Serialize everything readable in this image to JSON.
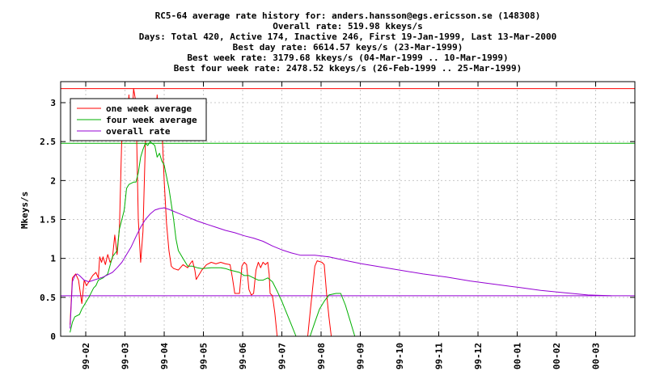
{
  "chart_data": {
    "type": "line",
    "title_lines": [
      "RC5-64 average rate history for: anders.hansson@egs.ericsson.se (148308)",
      "Overall rate: 519.98 kkeys/s",
      "Days: Total 420,  Active 174, Inactive 246, First 19-Jan-1999, Last 13-Mar-2000",
      "Best day rate: 6614.57 keys/s (23-Mar-1999)",
      "Best week rate: 3179.68 kkeys/s (04-Mar-1999 .. 10-Mar-1999)",
      "Best four week rate: 2478.52 kkeys/s (26-Feb-1999 .. 25-Mar-1999)"
    ],
    "ylabel": "Mkeys/s",
    "ylim": [
      0,
      3.27
    ],
    "yticks": [
      {
        "value": 0,
        "label": "0"
      },
      {
        "value": 0.5,
        "label": "0.5"
      },
      {
        "value": 1,
        "label": "1"
      },
      {
        "value": 1.5,
        "label": "1.5"
      },
      {
        "value": 2,
        "label": "2"
      },
      {
        "value": 2.5,
        "label": "2.5"
      },
      {
        "value": 3,
        "label": "3"
      }
    ],
    "xlim": [
      1999.03,
      2000.25
    ],
    "xticks": [
      {
        "value": 1999.0833,
        "label": "99-02"
      },
      {
        "value": 1999.1667,
        "label": "99-03"
      },
      {
        "value": 1999.25,
        "label": "99-04"
      },
      {
        "value": 1999.3333,
        "label": "99-05"
      },
      {
        "value": 1999.4167,
        "label": "99-06"
      },
      {
        "value": 1999.5,
        "label": "99-07"
      },
      {
        "value": 1999.5833,
        "label": "99-08"
      },
      {
        "value": 1999.6667,
        "label": "99-09"
      },
      {
        "value": 1999.75,
        "label": "99-10"
      },
      {
        "value": 1999.8333,
        "label": "99-11"
      },
      {
        "value": 1999.9167,
        "label": "99-12"
      },
      {
        "value": 2000.0,
        "label": "00-01"
      },
      {
        "value": 2000.0833,
        "label": "00-02"
      },
      {
        "value": 2000.1667,
        "label": "00-03"
      }
    ],
    "grid": true,
    "legend_position": "top-left",
    "hlines": [
      {
        "value": 3.18,
        "color": "#ff0000"
      },
      {
        "value": 2.4785,
        "color": "#00b000"
      },
      {
        "value": 0.52,
        "color": "#9400d3"
      }
    ],
    "series": [
      {
        "name": "one week average",
        "color": "#ff0000",
        "points": [
          [
            1999.05,
            0.15
          ],
          [
            1999.055,
            0.75
          ],
          [
            1999.062,
            0.8
          ],
          [
            1999.068,
            0.72
          ],
          [
            1999.072,
            0.55
          ],
          [
            1999.075,
            0.42
          ],
          [
            1999.08,
            0.72
          ],
          [
            1999.085,
            0.65
          ],
          [
            1999.092,
            0.72
          ],
          [
            1999.098,
            0.78
          ],
          [
            1999.105,
            0.82
          ],
          [
            1999.11,
            0.75
          ],
          [
            1999.113,
            1.02
          ],
          [
            1999.117,
            0.95
          ],
          [
            1999.12,
            1.02
          ],
          [
            1999.125,
            0.92
          ],
          [
            1999.13,
            1.05
          ],
          [
            1999.135,
            0.95
          ],
          [
            1999.14,
            1.0
          ],
          [
            1999.145,
            1.3
          ],
          [
            1999.15,
            1.05
          ],
          [
            1999.155,
            1.4
          ],
          [
            1999.16,
            2.6
          ],
          [
            1999.165,
            2.95
          ],
          [
            1999.17,
            2.55
          ],
          [
            1999.175,
            3.1
          ],
          [
            1999.18,
            2.6
          ],
          [
            1999.185,
            3.18
          ],
          [
            1999.19,
            3.0
          ],
          [
            1999.195,
            1.5
          ],
          [
            1999.2,
            0.95
          ],
          [
            1999.205,
            1.35
          ],
          [
            1999.21,
            2.5
          ],
          [
            1999.215,
            2.9
          ],
          [
            1999.22,
            3.0
          ],
          [
            1999.225,
            2.75
          ],
          [
            1999.23,
            2.55
          ],
          [
            1999.235,
            3.1
          ],
          [
            1999.24,
            2.6
          ],
          [
            1999.245,
            2.7
          ],
          [
            1999.25,
            2.0
          ],
          [
            1999.255,
            1.45
          ],
          [
            1999.26,
            1.1
          ],
          [
            1999.265,
            0.9
          ],
          [
            1999.27,
            0.87
          ],
          [
            1999.28,
            0.85
          ],
          [
            1999.29,
            0.92
          ],
          [
            1999.3,
            0.88
          ],
          [
            1999.305,
            0.93
          ],
          [
            1999.31,
            0.97
          ],
          [
            1999.315,
            0.85
          ],
          [
            1999.318,
            0.73
          ],
          [
            1999.325,
            0.8
          ],
          [
            1999.33,
            0.85
          ],
          [
            1999.34,
            0.92
          ],
          [
            1999.35,
            0.95
          ],
          [
            1999.36,
            0.93
          ],
          [
            1999.37,
            0.95
          ],
          [
            1999.38,
            0.93
          ],
          [
            1999.39,
            0.92
          ],
          [
            1999.395,
            0.75
          ],
          [
            1999.4,
            0.55
          ],
          [
            1999.41,
            0.55
          ],
          [
            1999.415,
            0.9
          ],
          [
            1999.42,
            0.95
          ],
          [
            1999.425,
            0.92
          ],
          [
            1999.43,
            0.6
          ],
          [
            1999.435,
            0.53
          ],
          [
            1999.44,
            0.55
          ],
          [
            1999.445,
            0.85
          ],
          [
            1999.45,
            0.95
          ],
          [
            1999.455,
            0.88
          ],
          [
            1999.46,
            0.95
          ],
          [
            1999.465,
            0.92
          ],
          [
            1999.47,
            0.95
          ],
          [
            1999.473,
            0.8
          ],
          [
            1999.475,
            0.55
          ],
          [
            1999.48,
            0.52
          ],
          [
            1999.485,
            0.3
          ],
          [
            1999.49,
            0.0
          ],
          [
            1999.555,
            0.0
          ],
          [
            1999.56,
            0.3
          ],
          [
            1999.565,
            0.6
          ],
          [
            1999.57,
            0.9
          ],
          [
            1999.575,
            0.97
          ],
          [
            1999.585,
            0.95
          ],
          [
            1999.59,
            0.92
          ],
          [
            1999.595,
            0.55
          ],
          [
            1999.6,
            0.25
          ],
          [
            1999.605,
            0.0
          ]
        ]
      },
      {
        "name": "four week average",
        "color": "#00b000",
        "points": [
          [
            1999.05,
            0.05
          ],
          [
            1999.055,
            0.18
          ],
          [
            1999.06,
            0.25
          ],
          [
            1999.07,
            0.28
          ],
          [
            1999.075,
            0.35
          ],
          [
            1999.08,
            0.4
          ],
          [
            1999.09,
            0.5
          ],
          [
            1999.1,
            0.62
          ],
          [
            1999.105,
            0.65
          ],
          [
            1999.11,
            0.72
          ],
          [
            1999.12,
            0.75
          ],
          [
            1999.13,
            0.8
          ],
          [
            1999.14,
            1.02
          ],
          [
            1999.15,
            1.1
          ],
          [
            1999.155,
            1.38
          ],
          [
            1999.16,
            1.5
          ],
          [
            1999.165,
            1.62
          ],
          [
            1999.17,
            1.9
          ],
          [
            1999.175,
            1.95
          ],
          [
            1999.185,
            1.98
          ],
          [
            1999.19,
            1.98
          ],
          [
            1999.195,
            2.1
          ],
          [
            1999.2,
            2.3
          ],
          [
            1999.205,
            2.4
          ],
          [
            1999.21,
            2.48
          ],
          [
            1999.215,
            2.45
          ],
          [
            1999.22,
            2.5
          ],
          [
            1999.23,
            2.45
          ],
          [
            1999.235,
            2.3
          ],
          [
            1999.24,
            2.35
          ],
          [
            1999.245,
            2.25
          ],
          [
            1999.25,
            2.2
          ],
          [
            1999.26,
            1.9
          ],
          [
            1999.27,
            1.5
          ],
          [
            1999.275,
            1.25
          ],
          [
            1999.28,
            1.1
          ],
          [
            1999.29,
            1.0
          ],
          [
            1999.3,
            0.9
          ],
          [
            1999.31,
            0.9
          ],
          [
            1999.32,
            0.88
          ],
          [
            1999.33,
            0.87
          ],
          [
            1999.35,
            0.88
          ],
          [
            1999.37,
            0.88
          ],
          [
            1999.38,
            0.87
          ],
          [
            1999.39,
            0.85
          ],
          [
            1999.41,
            0.82
          ],
          [
            1999.42,
            0.78
          ],
          [
            1999.43,
            0.78
          ],
          [
            1999.44,
            0.75
          ],
          [
            1999.45,
            0.72
          ],
          [
            1999.46,
            0.72
          ],
          [
            1999.47,
            0.75
          ],
          [
            1999.48,
            0.7
          ],
          [
            1999.49,
            0.58
          ],
          [
            1999.5,
            0.45
          ],
          [
            1999.51,
            0.3
          ],
          [
            1999.52,
            0.15
          ],
          [
            1999.53,
            0.0
          ],
          [
            1999.56,
            0.0
          ],
          [
            1999.57,
            0.18
          ],
          [
            1999.58,
            0.35
          ],
          [
            1999.59,
            0.45
          ],
          [
            1999.6,
            0.53
          ],
          [
            1999.615,
            0.55
          ],
          [
            1999.625,
            0.55
          ],
          [
            1999.635,
            0.4
          ],
          [
            1999.645,
            0.2
          ],
          [
            1999.655,
            0.0
          ]
        ]
      },
      {
        "name": "overall rate",
        "color": "#9400d3",
        "points": [
          [
            1999.05,
            0.1
          ],
          [
            1999.055,
            0.7
          ],
          [
            1999.06,
            0.78
          ],
          [
            1999.065,
            0.8
          ],
          [
            1999.07,
            0.78
          ],
          [
            1999.08,
            0.72
          ],
          [
            1999.09,
            0.7
          ],
          [
            1999.1,
            0.72
          ],
          [
            1999.11,
            0.74
          ],
          [
            1999.12,
            0.76
          ],
          [
            1999.13,
            0.79
          ],
          [
            1999.14,
            0.82
          ],
          [
            1999.15,
            0.88
          ],
          [
            1999.16,
            0.95
          ],
          [
            1999.17,
            1.05
          ],
          [
            1999.18,
            1.15
          ],
          [
            1999.19,
            1.28
          ],
          [
            1999.2,
            1.4
          ],
          [
            1999.21,
            1.5
          ],
          [
            1999.22,
            1.57
          ],
          [
            1999.23,
            1.62
          ],
          [
            1999.24,
            1.64
          ],
          [
            1999.25,
            1.65
          ],
          [
            1999.26,
            1.63
          ],
          [
            1999.28,
            1.58
          ],
          [
            1999.3,
            1.53
          ],
          [
            1999.32,
            1.48
          ],
          [
            1999.34,
            1.44
          ],
          [
            1999.36,
            1.4
          ],
          [
            1999.38,
            1.36
          ],
          [
            1999.4,
            1.33
          ],
          [
            1999.42,
            1.29
          ],
          [
            1999.44,
            1.26
          ],
          [
            1999.46,
            1.22
          ],
          [
            1999.48,
            1.16
          ],
          [
            1999.5,
            1.11
          ],
          [
            1999.52,
            1.07
          ],
          [
            1999.54,
            1.04
          ],
          [
            1999.57,
            1.04
          ],
          [
            1999.6,
            1.02
          ],
          [
            1999.63,
            0.98
          ],
          [
            1999.67,
            0.93
          ],
          [
            1999.7,
            0.9
          ],
          [
            1999.75,
            0.85
          ],
          [
            1999.8,
            0.8
          ],
          [
            1999.85,
            0.76
          ],
          [
            1999.9,
            0.71
          ],
          [
            1999.95,
            0.67
          ],
          [
            2000.0,
            0.63
          ],
          [
            2000.05,
            0.59
          ],
          [
            2000.1,
            0.56
          ],
          [
            2000.15,
            0.53
          ],
          [
            2000.2,
            0.52
          ]
        ]
      }
    ]
  }
}
